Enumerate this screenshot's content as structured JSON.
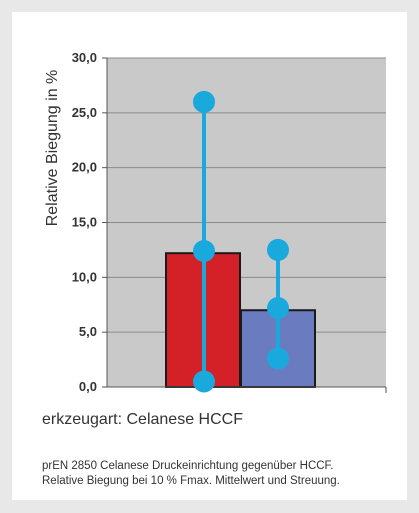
{
  "chart_data": {
    "type": "bar",
    "ylabel": "Relative Biegung in %",
    "ylim": [
      0,
      30
    ],
    "yticks": [
      "0,0",
      "5,0",
      "10,0",
      "15,0",
      "20,0",
      "25,0",
      "30,0"
    ],
    "grid": true,
    "series": [
      {
        "values": [
          12.2,
          7.0
        ],
        "colors": [
          "#d42027",
          "#6a7bbf"
        ]
      }
    ],
    "spread": [
      {
        "min": 0.5,
        "mean": 12.4,
        "max": 26.0
      },
      {
        "min": 2.6,
        "mean": 7.2,
        "max": 12.5
      }
    ],
    "marker_color": "#1aa9dc",
    "plot_bg": "#c9c9c9"
  },
  "caption": {
    "prefix": "erkzeugart:",
    "value": "Celanese HCCF"
  },
  "footnote": {
    "line1": "prEN 2850 Celanese Druckeinrichtung gegenüber HCCF.",
    "line2": "Relative Biegung bei 10 % Fmax. Mittelwert und Streuung."
  }
}
